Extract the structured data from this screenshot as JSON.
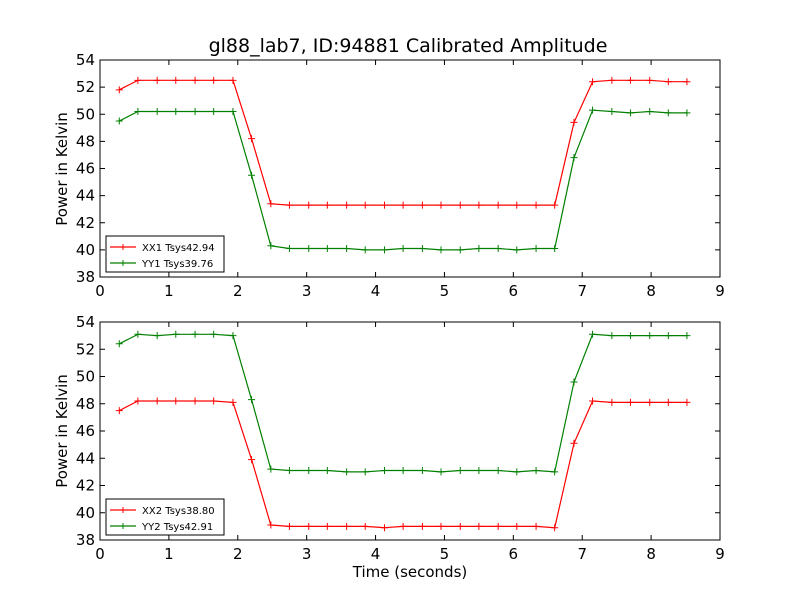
{
  "chart_data": {
    "title": "gl88_lab7, ID:94881 Calibrated Amplitude",
    "xlabel": "Time (seconds)",
    "colors": {
      "red": "#ff0000",
      "green": "#008000"
    },
    "plots": [
      {
        "type": "line",
        "ylabel": "Power in Kelvin",
        "xlim": [
          0,
          9
        ],
        "ylim": [
          38,
          54
        ],
        "xticks": [
          0,
          1,
          2,
          3,
          4,
          5,
          6,
          7,
          8,
          9
        ],
        "yticks": [
          38,
          40,
          42,
          44,
          46,
          48,
          50,
          52,
          54
        ],
        "x": [
          0.28,
          0.55,
          0.83,
          1.1,
          1.38,
          1.65,
          1.93,
          2.2,
          2.48,
          2.75,
          3.03,
          3.3,
          3.58,
          3.85,
          4.13,
          4.4,
          4.68,
          4.95,
          5.23,
          5.5,
          5.78,
          6.05,
          6.33,
          6.6,
          6.88,
          7.15,
          7.43,
          7.7,
          7.98,
          8.25,
          8.52
        ],
        "legend_position": "lower-left",
        "series": [
          {
            "name": "XX1 Tsys42.94",
            "color": "#ff0000",
            "values": [
              51.8,
              52.5,
              52.5,
              52.5,
              52.5,
              52.5,
              52.5,
              48.2,
              43.4,
              43.3,
              43.3,
              43.3,
              43.3,
              43.3,
              43.3,
              43.3,
              43.3,
              43.3,
              43.3,
              43.3,
              43.3,
              43.3,
              43.3,
              43.3,
              49.4,
              52.4,
              52.5,
              52.5,
              52.5,
              52.4,
              52.4
            ]
          },
          {
            "name": "YY1 Tsys39.76",
            "color": "#008000",
            "values": [
              49.5,
              50.2,
              50.2,
              50.2,
              50.2,
              50.2,
              50.2,
              45.5,
              40.3,
              40.1,
              40.1,
              40.1,
              40.1,
              40.0,
              40.0,
              40.1,
              40.1,
              40.0,
              40.0,
              40.1,
              40.1,
              40.0,
              40.1,
              40.1,
              46.8,
              50.3,
              50.2,
              50.1,
              50.2,
              50.1,
              50.1
            ]
          }
        ]
      },
      {
        "type": "line",
        "ylabel": "Power in Kelvin",
        "xlim": [
          0,
          9
        ],
        "ylim": [
          38,
          54
        ],
        "xticks": [
          0,
          1,
          2,
          3,
          4,
          5,
          6,
          7,
          8,
          9
        ],
        "yticks": [
          38,
          40,
          42,
          44,
          46,
          48,
          50,
          52,
          54
        ],
        "x": [
          0.28,
          0.55,
          0.83,
          1.1,
          1.38,
          1.65,
          1.93,
          2.2,
          2.48,
          2.75,
          3.03,
          3.3,
          3.58,
          3.85,
          4.13,
          4.4,
          4.68,
          4.95,
          5.23,
          5.5,
          5.78,
          6.05,
          6.33,
          6.6,
          6.88,
          7.15,
          7.43,
          7.7,
          7.98,
          8.25,
          8.52
        ],
        "legend_position": "lower-left",
        "series": [
          {
            "name": "XX2 Tsys38.80",
            "color": "#ff0000",
            "values": [
              47.5,
              48.2,
              48.2,
              48.2,
              48.2,
              48.2,
              48.1,
              43.9,
              39.1,
              39.0,
              39.0,
              39.0,
              39.0,
              39.0,
              38.9,
              39.0,
              39.0,
              39.0,
              39.0,
              39.0,
              39.0,
              39.0,
              39.0,
              38.9,
              45.1,
              48.2,
              48.1,
              48.1,
              48.1,
              48.1,
              48.1
            ]
          },
          {
            "name": "YY2 Tsys42.91",
            "color": "#008000",
            "values": [
              52.4,
              53.1,
              53.0,
              53.1,
              53.1,
              53.1,
              53.0,
              48.3,
              43.2,
              43.1,
              43.1,
              43.1,
              43.0,
              43.0,
              43.1,
              43.1,
              43.1,
              43.0,
              43.1,
              43.1,
              43.1,
              43.0,
              43.1,
              43.0,
              49.6,
              53.1,
              53.0,
              53.0,
              53.0,
              53.0,
              53.0
            ]
          }
        ]
      }
    ]
  }
}
